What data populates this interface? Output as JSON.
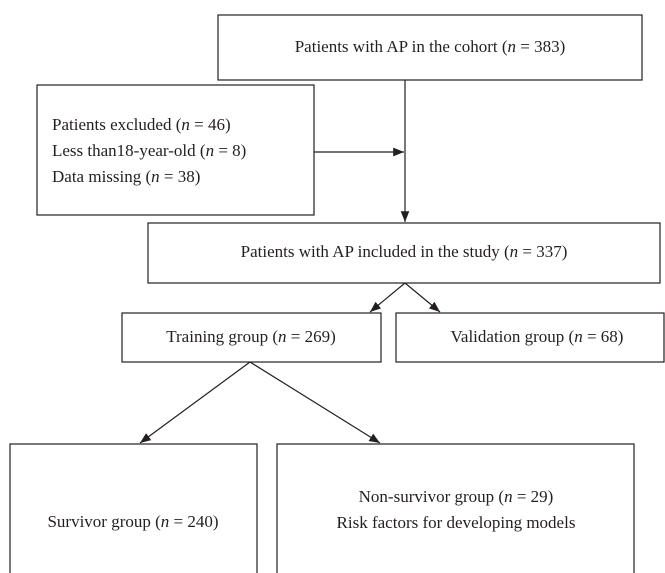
{
  "nodes": [
    {
      "lines": [
        "Patients with AP in the cohort (n = 383)"
      ]
    },
    {
      "lines": [
        "Patients excluded (n = 46)",
        "Less than18-year-old (n = 8)",
        "Data missing (n = 38)"
      ]
    },
    {
      "lines": [
        "Patients with AP included in the study (n = 337)"
      ]
    },
    {
      "lines": [
        "Training group (n = 269)"
      ]
    },
    {
      "lines": [
        "Validation group (n = 68)"
      ]
    },
    {
      "lines": [
        "Survivor group (n = 240)"
      ]
    },
    {
      "lines": [
        "Non-survivor group (n = 29)",
        "Risk factors for developing models"
      ]
    }
  ]
}
